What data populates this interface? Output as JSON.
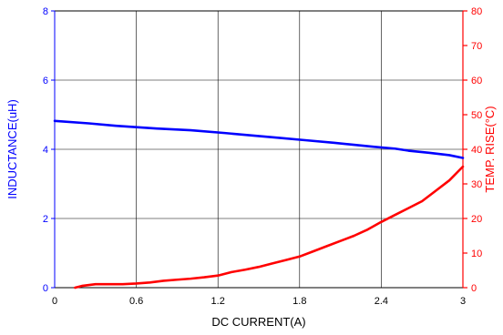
{
  "chart_data": {
    "type": "line",
    "title": "",
    "xlabel": "DC CURRENT(A)",
    "ylabel_left": "INDUCTANCE(uH)",
    "ylabel_right": "TEMP. RISE(°C)",
    "xlim": [
      0,
      3
    ],
    "ylim_left": [
      0,
      8
    ],
    "ylim_right": [
      0,
      80
    ],
    "x_ticks": [
      "0",
      "0.6",
      "1.2",
      "1.8",
      "2.4",
      "3"
    ],
    "y_left_ticks": [
      "0",
      "2",
      "4",
      "6",
      "8"
    ],
    "y_right_ticks": [
      "0",
      "10",
      "20",
      "30",
      "40",
      "50",
      "60",
      "70",
      "80"
    ],
    "grid": true,
    "legend": "none",
    "colors": {
      "inductance": "#0000ff",
      "temp_rise": "#ff0000",
      "grid": "#000000"
    },
    "series": [
      {
        "axis": "left",
        "x": [
          0,
          0.25,
          0.45,
          0.75,
          1.0,
          1.25,
          1.45,
          1.65,
          1.85,
          2.05,
          2.2,
          2.35,
          2.5,
          2.6,
          2.75,
          2.9,
          3.0
        ],
        "values": [
          4.82,
          4.75,
          4.68,
          4.6,
          4.55,
          4.47,
          4.4,
          4.33,
          4.26,
          4.19,
          4.13,
          4.07,
          4.02,
          3.96,
          3.9,
          3.83,
          3.75
        ]
      },
      {
        "axis": "right",
        "x": [
          0.15,
          0.2,
          0.3,
          0.4,
          0.5,
          0.6,
          0.7,
          0.8,
          0.9,
          1.0,
          1.1,
          1.2,
          1.3,
          1.4,
          1.5,
          1.6,
          1.7,
          1.8,
          1.9,
          2.0,
          2.1,
          2.2,
          2.3,
          2.4,
          2.5,
          2.6,
          2.7,
          2.8,
          2.9,
          3.0
        ],
        "values": [
          0,
          0.5,
          1,
          1,
          1,
          1.2,
          1.5,
          2,
          2.3,
          2.6,
          3,
          3.5,
          4.5,
          5.2,
          6,
          7,
          8,
          9,
          10.5,
          12,
          13.5,
          15,
          16.8,
          19,
          21,
          23,
          25,
          28,
          31,
          35
        ]
      }
    ]
  }
}
